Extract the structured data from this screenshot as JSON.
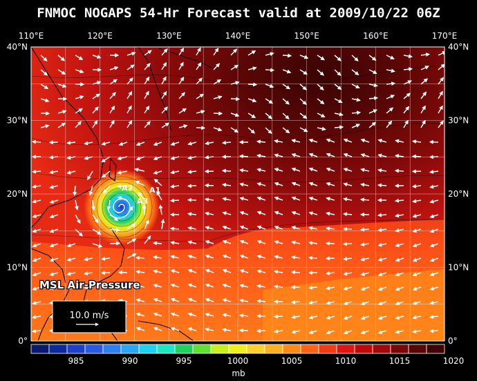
{
  "title": "FNMOC NOGAPS 54-Hr Forecast valid at 2009/10/22 06Z",
  "map": {
    "lon_labels": [
      "110°E",
      "120°E",
      "130°E",
      "140°E",
      "150°E",
      "160°E",
      "170°E"
    ],
    "lat_labels": [
      "40°N",
      "30°N",
      "20°N",
      "10°N",
      "0°"
    ],
    "extent": {
      "lon": [
        110,
        170
      ],
      "lat": [
        0,
        40
      ]
    },
    "field_label": "MSL Air-Pressure",
    "vector_reference": "10.0 m/s",
    "storm_labels": [
      "A2",
      "A1",
      "A3"
    ]
  },
  "colorbar": {
    "unit": "mb",
    "tick_labels": [
      "985",
      "990",
      "995",
      "1000",
      "1005",
      "1010",
      "1015",
      "1020"
    ],
    "colors": [
      "#0a1a6e",
      "#0d2a9a",
      "#1e40c8",
      "#2a5ae0",
      "#2f7ff0",
      "#2aa6f5",
      "#1fd0f0",
      "#1ee6c0",
      "#22d060",
      "#60e030",
      "#c8f020",
      "#f0f020",
      "#ffd030",
      "#ffb020",
      "#ff8a18",
      "#ff6418",
      "#f43a14",
      "#e01414",
      "#c00a0a",
      "#a00a0a",
      "#7a0808",
      "#5a0606",
      "#400404"
    ]
  },
  "colors": {
    "background": "#000000",
    "text": "#ffffff",
    "coast": "#000000"
  }
}
